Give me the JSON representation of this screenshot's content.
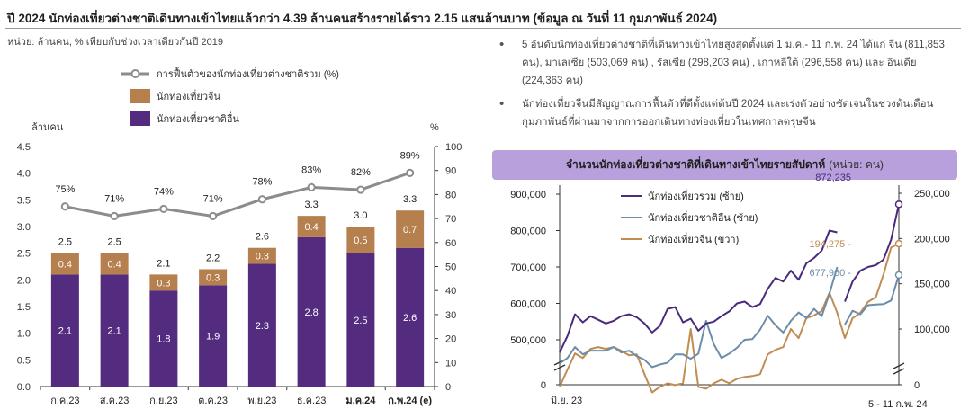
{
  "header": {
    "title": "ปี 2024 นักท่องเที่ยวต่างชาติเดินทางเข้าไทยแล้วกว่า 4.39 ล้านคนสร้างรายได้ราว 2.15 แสนล้านบาท (ข้อมูล ณ วันที่ 11 กุมภาพันธ์ 2024)",
    "unit_note": "หน่วย:  ล้านคน, % เทียบกับช่วงเวลาเดียวกันปี 2019"
  },
  "bullets": [
    "5 อันดับนักท่องเที่ยวต่างชาติที่เดินทางเข้าไทยสูงสุดตั้งแต่ 1 ม.ค.- 11 ก.พ. 24 ได้แก่ จีน (811,853 คน), มาเลเซีย (503,069 คน) , รัสเซีย (298,203 คน) , เกาหลีใต้ (296,558 คน)  และ อินเดีย (224,363 คน)",
    "นักท่องเที่ยวจีนมีสัญญาณการฟื้นตัวที่ดีตั้งแต่ต้นปี 2024 และเร่งตัวอย่างชัดเจนในช่วงต้นเดือนกุมภาพันธ์ที่ผ่านมาจากการออกเดินทางท่องเที่ยวในเทศกาลตรุษจีน"
  ],
  "right_banner": {
    "title": "จำนวนนักท่องเที่ยวต่างชาติที่เดินทางเข้าไทยรายสัปดาห์",
    "subtitle": "(หน่วย: คน)"
  },
  "colors": {
    "other_bar": "#532b7f",
    "china_bar": "#b67f4e",
    "recovery_line": "#8c8c8c",
    "total_line": "#4b2a7c",
    "other_line": "#6c8daa",
    "china_line": "#c08c52",
    "banner": "#b8a0dc"
  },
  "chart_data": [
    {
      "type": "bar",
      "stacked": true,
      "categories": [
        "ก.ค.23",
        "ส.ค.23",
        "ก.ย.23",
        "ต.ค.23",
        "พ.ย.23",
        "ธ.ค.23",
        "ม.ค.24",
        "ก.พ.24 (e)"
      ],
      "bold_categories": [
        "ม.ค.24",
        "ก.พ.24 (e)"
      ],
      "series": [
        {
          "name": "นักท่องเที่ยวชาติอื่น",
          "values": [
            2.1,
            2.1,
            1.8,
            1.9,
            2.3,
            2.8,
            2.5,
            2.6
          ]
        },
        {
          "name": "นักท่องเที่ยวจีน",
          "values": [
            0.4,
            0.4,
            0.3,
            0.3,
            0.3,
            0.4,
            0.5,
            0.7
          ]
        }
      ],
      "totals": [
        2.5,
        2.5,
        2.1,
        2.2,
        2.6,
        3.3,
        3.0,
        3.3
      ],
      "line": {
        "name": "การฟื้นตัวของนักท่องเที่ยวต่างชาติรวม (%)",
        "values": [
          75,
          71,
          74,
          71,
          78,
          83,
          82,
          89
        ]
      },
      "ylabel": "ล้านคน",
      "y2label": "%",
      "ylim": [
        0,
        4.5
      ],
      "y_ticks": [
        "0.0",
        "0.5",
        "1.0",
        "1.5",
        "2.0",
        "2.5",
        "3.0",
        "3.5",
        "4.0",
        "4.5"
      ],
      "y2lim": [
        0,
        100
      ],
      "y2_ticks": [
        "0",
        "10",
        "20",
        "30",
        "40",
        "50",
        "60",
        "70",
        "80",
        "90",
        "100"
      ],
      "legend_position": "top-left",
      "grid": false
    },
    {
      "type": "line",
      "x_start_label": "มิ.ย. 23",
      "x_end_label": "5 - 11 ก.พ. 24",
      "series": [
        {
          "name": "นักท่องเที่ยวรวม (ซ้าย)",
          "axis": "left",
          "values": [
            465000,
            510000,
            570000,
            548000,
            565000,
            555000,
            545000,
            552000,
            565000,
            570000,
            562000,
            545000,
            520000,
            538000,
            585000,
            590000,
            548000,
            558000,
            525000,
            545000,
            550000,
            565000,
            578000,
            600000,
            605000,
            590000,
            598000,
            640000,
            670000,
            660000,
            690000,
            665000,
            710000,
            725000,
            745000,
            800000,
            795000,
            605000,
            660000,
            690000,
            700000,
            705000,
            720000,
            775000,
            872235
          ],
          "last_label": "872,235",
          "gaps_after_index": [
            36
          ]
        },
        {
          "name": "นักท่องเที่ยวชาติอื่น (ซ้าย)",
          "axis": "left",
          "values": [
            435000,
            450000,
            480000,
            460000,
            470000,
            470000,
            470000,
            480000,
            465000,
            470000,
            455000,
            445000,
            425000,
            432000,
            437000,
            460000,
            460000,
            448000,
            462000,
            552000,
            488000,
            450000,
            462000,
            478000,
            500000,
            502000,
            528000,
            566000,
            540000,
            520000,
            552000,
            575000,
            560000,
            585000,
            565000,
            627000,
            700000,
            542000,
            580000,
            570000,
            595000,
            597000,
            598000,
            608000,
            677960
          ],
          "last_label": "677,960",
          "gaps_after_index": [
            36
          ]
        },
        {
          "name": "นักท่องเที่ยวจีน (ขวา)",
          "axis": "right",
          "values": [
            36000,
            55000,
            73000,
            68000,
            78000,
            80000,
            78000,
            80000,
            76000,
            71000,
            72000,
            50000,
            30000,
            36000,
            40000,
            38000,
            40000,
            100000,
            36000,
            34000,
            40000,
            44000,
            40000,
            45000,
            47000,
            48000,
            50000,
            72000,
            77000,
            80000,
            100000,
            90000,
            112000,
            115000,
            120000,
            140000,
            118000,
            90000,
            112000,
            118000,
            130000,
            135000,
            160000,
            190000,
            194275
          ],
          "last_label": "194,275",
          "gaps_after_index": []
        }
      ],
      "ylim": [
        0,
        900000
      ],
      "y_ticks": [
        "0",
        "500,000",
        "600,000",
        "700,000",
        "800,000",
        "900,000"
      ],
      "y2lim": [
        0,
        250000
      ],
      "y2_ticks": [
        "0",
        "100,000",
        "150,000",
        "200,000",
        "250,000"
      ],
      "axis_breaks": true,
      "legend_position": "top-left",
      "grid": false
    }
  ]
}
